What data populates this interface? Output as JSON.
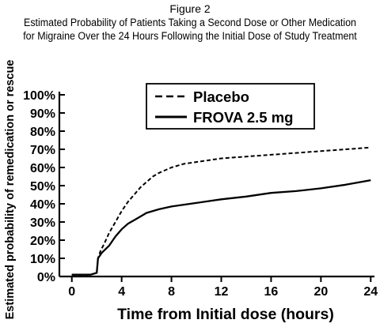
{
  "figure": {
    "label": "Figure 2",
    "title_line1": "Estimated Probability of Patients Taking a Second Dose or Other Medication",
    "title_line2": "for Migraine Over the 24 Hours Following the Initial Dose of Study Treatment"
  },
  "chart_data": {
    "type": "line",
    "title": "Estimated Probability of Patients Taking a Second Dose or Other Medication for Migraine Over the 24 Hours Following the Initial Dose of Study Treatment",
    "xlabel": "Time from Initial dose (hours)",
    "ylabel": "Estimated probability of remedication or rescue",
    "xlim": [
      -1,
      24.3
    ],
    "ylim": [
      0,
      100
    ],
    "x_ticks": [
      0,
      4,
      8,
      12,
      16,
      20,
      24
    ],
    "x_tick_labels": [
      "0",
      "4",
      "8",
      "12",
      "16",
      "20",
      "24"
    ],
    "y_ticks": [
      0,
      10,
      20,
      30,
      40,
      50,
      60,
      70,
      80,
      90,
      100
    ],
    "y_tick_labels": [
      "0%",
      "10%",
      "20%",
      "30%",
      "40%",
      "50%",
      "60%",
      "70%",
      "80%",
      "90%",
      "100%"
    ],
    "grid": false,
    "legend_position": "top-center",
    "series": [
      {
        "name": "Placebo",
        "style": "dashed",
        "color": "#000000",
        "x": [
          0,
          1.5,
          2.0,
          2.1,
          2.3,
          2.6,
          3.0,
          3.5,
          4.0,
          4.5,
          5.0,
          5.5,
          6.0,
          6.5,
          7.0,
          8.0,
          9.0,
          10.0,
          12.0,
          14.0,
          16.0,
          18.0,
          20.0,
          22.0,
          24.0
        ],
        "values": [
          1,
          1,
          2,
          10,
          14,
          18,
          24,
          30,
          36,
          41,
          45,
          49,
          52,
          55,
          57,
          60,
          62,
          63,
          65,
          66,
          67,
          68,
          69,
          70,
          71
        ]
      },
      {
        "name": "FROVA 2.5 mg",
        "style": "solid",
        "color": "#000000",
        "x": [
          0,
          1.5,
          2.0,
          2.1,
          2.4,
          3.0,
          3.5,
          4.0,
          4.5,
          5.0,
          5.5,
          6.0,
          7.0,
          8.0,
          9.0,
          10.0,
          12.0,
          14.0,
          16.0,
          18.0,
          20.0,
          22.0,
          24.0
        ],
        "values": [
          1,
          1,
          2,
          10,
          13,
          17,
          22,
          26,
          29,
          31,
          33,
          35,
          37,
          38.5,
          39.5,
          40.5,
          42.5,
          44,
          46,
          47,
          48.5,
          50.5,
          53
        ]
      }
    ]
  }
}
